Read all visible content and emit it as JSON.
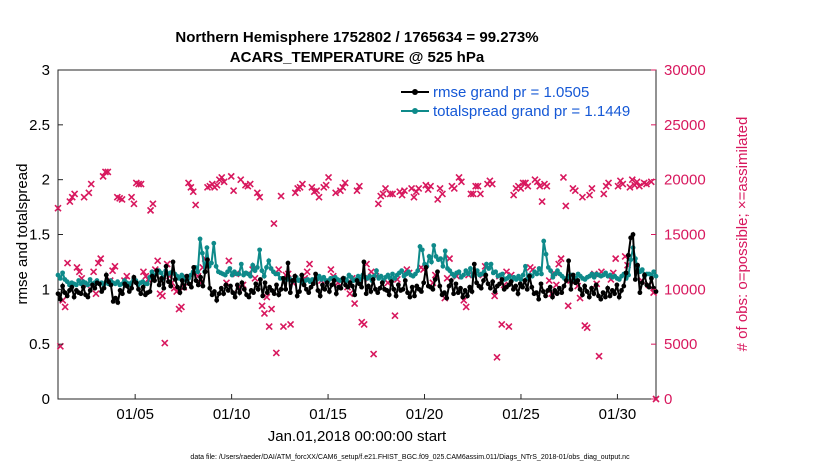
{
  "chart_data": {
    "type": "line",
    "title": "Northern Hemisphere 1752802 / 1765634 = 99.273%",
    "subtitle": "ACARS_TEMPERATURE @ 525 hPa",
    "xlabel": "Jan.01,2018 00:00:00 start",
    "ylabel": "rmse and totalspread",
    "y2label": "# of obs: o=possible; ×=assimilated",
    "footnote": "data file: /Users/raeder/DAI/ATM_forcXX/CAM6_setup/f.e21.FHIST_BGC.f09_025.CAM6assim.011/Diags_NTrS_2018-01/obs_diag_output.nc",
    "xlim": [
      1,
      32
    ],
    "ylim": [
      0,
      3
    ],
    "y2lim": [
      0,
      30000
    ],
    "xticks": [
      5,
      10,
      15,
      20,
      25,
      30
    ],
    "xtick_labels": [
      "01/05",
      "01/10",
      "01/15",
      "01/20",
      "01/25",
      "01/30"
    ],
    "yticks": [
      "0",
      "0.5",
      "1",
      "1.5",
      "2",
      "2.5",
      "3"
    ],
    "y2ticks": [
      "0",
      "5000",
      "10000",
      "15000",
      "20000",
      "25000",
      "30000"
    ],
    "colors": {
      "rmse": "#000000",
      "spread": "#0e8a8a",
      "obs": "#d8185e",
      "legend_text": "#1558d6"
    },
    "legend_position": "top-right",
    "series": [
      {
        "name": "rmse grand pr = 1.0505",
        "marker": "circle",
        "values": [
          0.96,
          0.91,
          1.03,
          0.97,
          0.94,
          0.99,
          1.02,
          0.93,
          0.99,
          0.97,
          0.96,
          1.02,
          0.95,
          0.93,
          0.99,
          1.04,
          1.01,
          1.06,
          1.05,
          0.98,
          1.01,
          1.13,
          1.07,
          1.04,
          0.89,
          0.92,
          0.88,
          0.99,
          0.96,
          1.05,
          1.03,
          0.98,
          1.01,
          1.11,
          1.06,
          1.0,
          0.96,
          1.02,
          0.95,
          0.97,
          0.98,
          1.12,
          1.08,
          1.17,
          1.04,
          1.1,
          1.01,
          1.21,
          1.07,
          1.03,
          1.25,
          1.09,
          1.02,
          0.97,
          1.08,
          1.01,
          1.12,
          1.05,
          1.02,
          1.2,
          1.08,
          1.04,
          1.11,
          1.03,
          1.16,
          1.27,
          1.01,
          0.95,
          0.98,
          0.9,
          0.96,
          1.01,
          0.96,
          1.04,
          0.99,
          1.03,
          0.97,
          0.93,
          1.04,
          0.97,
          1.06,
          1.0,
          0.95,
          0.93,
          0.99,
          0.97,
          1.05,
          1.0,
          1.09,
          0.94,
          1.06,
          0.97,
          1.02,
          0.99,
          0.96,
          1.04,
          0.95,
          1.0,
          1.1,
          1.0,
          1.24,
          0.97,
          1.08,
          1.12,
          0.94,
          0.98,
          1.13,
          1.04,
          1.0,
          0.97,
          1.02,
          1.05,
          1.14,
          0.99,
          0.94,
          1.04,
          1.0,
          1.06,
          0.98,
          1.04,
          1.08,
          0.96,
          1.02,
          1.01,
          1.1,
          1.04,
          1.02,
          1.06,
          1.03,
          0.95,
          1.08,
          1.05,
          1.02,
          1.25,
          0.96,
          1.03,
          0.98,
          1.09,
          1.0,
          0.97,
          1.01,
          1.06,
          1.0,
          0.99,
          0.95,
          1.07,
          1.0,
          0.94,
          1.04,
          0.99,
          1.0,
          1.08,
          0.97,
          0.93,
          1.02,
          0.94,
          1.03,
          1.0,
          0.98,
          1.06,
          1.2,
          1.03,
          1.02,
          1.0,
          1.09,
          1.16,
          1.03,
          0.95,
          0.97,
          0.92,
          1.03,
          1.08,
          0.96,
          1.05,
          0.97,
          1.01,
          0.93,
          0.99,
          0.94,
          1.02,
          0.98,
          1.23,
          1.06,
          1.03,
          1.01,
          1.08,
          1.13,
          1.05,
          1.01,
          1.07,
          0.98,
          1.03,
          1.05,
          1.09,
          1.0,
          1.02,
          1.04,
          1.07,
          1.0,
          1.03,
          0.96,
          1.05,
          1.02,
          1.08,
          1.0,
          1.12,
          1.02,
          0.96,
          0.97,
          0.91,
          1.05,
          0.98,
          0.94,
          0.99,
          1.02,
          0.93,
          0.99,
          0.96,
          1.01,
          0.97,
          1.03,
          1.08,
          1.26,
          1.0,
          1.13,
          1.06,
          1.08,
          1.0,
          0.95,
          1.03,
          0.98,
          0.93,
          1.01,
          0.96,
          1.04,
          0.94,
          0.91,
          0.97,
          0.93,
          1.01,
          0.94,
          0.99,
          0.96,
          1.04,
          0.93,
          0.99,
          1.03,
          1.15,
          1.31,
          1.47,
          1.5,
          1.09,
          1.22,
          0.97,
          1.06,
          1.13,
          1.04,
          1.02,
          1.1,
          1.01,
          0.98
        ]
      },
      {
        "name": "totalspread grand pr = 1.1449",
        "marker": "circle",
        "values": [
          1.13,
          1.1,
          1.15,
          1.09,
          1.07,
          1.04,
          1.06,
          1.05,
          1.04,
          1.08,
          1.05,
          1.07,
          1.06,
          1.04,
          1.09,
          1.05,
          1.06,
          1.08,
          1.05,
          1.06,
          1.04,
          1.07,
          1.05,
          1.08,
          1.06,
          1.05,
          1.07,
          1.04,
          1.05,
          1.08,
          1.06,
          1.04,
          1.06,
          1.09,
          1.08,
          1.04,
          1.06,
          1.07,
          1.05,
          1.05,
          1.11,
          1.16,
          1.12,
          1.14,
          1.17,
          1.15,
          1.1,
          1.17,
          1.14,
          1.15,
          1.16,
          1.14,
          1.12,
          1.1,
          1.13,
          1.11,
          1.08,
          1.1,
          1.13,
          1.16,
          1.2,
          1.16,
          1.46,
          1.33,
          1.16,
          1.38,
          1.21,
          1.24,
          1.42,
          1.21,
          1.16,
          1.15,
          1.14,
          1.13,
          1.16,
          1.19,
          1.13,
          1.16,
          1.14,
          1.14,
          1.23,
          1.13,
          1.15,
          1.14,
          1.12,
          1.22,
          1.17,
          1.2,
          1.36,
          1.17,
          1.12,
          1.2,
          1.26,
          1.19,
          1.16,
          1.14,
          1.14,
          1.1,
          1.1,
          1.09,
          1.09,
          1.1,
          1.08,
          1.08,
          1.11,
          1.08,
          1.09,
          1.06,
          1.08,
          1.09,
          1.07,
          1.09,
          1.08,
          1.09,
          1.12,
          1.09,
          1.11,
          1.08,
          1.08,
          1.1,
          1.1,
          1.11,
          1.09,
          1.08,
          1.09,
          1.1,
          1.08,
          1.13,
          1.11,
          1.08,
          1.09,
          1.12,
          1.09,
          1.13,
          1.11,
          1.1,
          1.12,
          1.08,
          1.12,
          1.17,
          1.1,
          1.12,
          1.08,
          1.11,
          1.13,
          1.1,
          1.14,
          1.1,
          1.13,
          1.15,
          1.17,
          1.12,
          1.14,
          1.16,
          1.13,
          1.12,
          1.14,
          1.17,
          1.39,
          1.36,
          1.23,
          1.21,
          1.3,
          1.25,
          1.4,
          1.3,
          1.27,
          1.28,
          1.21,
          1.35,
          1.19,
          1.17,
          1.14,
          1.12,
          1.15,
          1.16,
          1.11,
          1.13,
          1.17,
          1.14,
          1.19,
          1.12,
          1.14,
          1.17,
          1.13,
          1.14,
          1.16,
          1.23,
          1.19,
          1.23,
          1.15,
          1.16,
          1.12,
          1.13,
          1.14,
          1.09,
          1.1,
          1.12,
          1.08,
          1.11,
          1.09,
          1.12,
          1.09,
          1.13,
          1.21,
          1.1,
          1.13,
          1.12,
          1.16,
          1.14,
          1.19,
          1.14,
          1.44,
          1.32,
          1.2,
          1.17,
          1.11,
          1.14,
          1.17,
          1.14,
          1.12,
          1.1,
          1.09,
          1.12,
          1.13,
          1.09,
          1.1,
          1.14,
          1.12,
          1.1,
          1.09,
          1.11,
          1.12,
          1.14,
          1.11,
          1.14,
          1.13,
          1.12,
          1.13,
          1.15,
          1.12,
          1.13,
          1.11,
          1.12,
          1.1,
          1.09,
          1.12,
          1.14,
          1.1,
          1.13,
          1.27,
          1.38,
          1.28,
          1.2,
          1.16,
          1.18,
          1.12,
          1.14,
          1.14,
          1.13,
          1.16,
          1.12
        ]
      },
      {
        "name": "obs assimilated",
        "marker": "x",
        "axis": "right",
        "values": [
          17400,
          4800,
          9000,
          8400,
          12400,
          18000,
          18400,
          18700,
          12000,
          11600,
          11000,
          18400,
          10400,
          18800,
          19600,
          11600,
          9600,
          12400,
          12800,
          20300,
          20700,
          20700,
          10800,
          11700,
          12100,
          18400,
          18300,
          18200,
          10800,
          11200,
          10400,
          18400,
          17800,
          19700,
          19600,
          19600,
          11600,
          11200,
          10900,
          17200,
          17800,
          11800,
          12600,
          9600,
          9400,
          5100,
          12300,
          11200,
          10600,
          10100,
          9800,
          8200,
          8400,
          10200,
          11100,
          19700,
          19300,
          18900,
          17700,
          11200,
          10600,
          12000,
          12800,
          19300,
          19400,
          19600,
          19300,
          19500,
          20000,
          20200,
          19800,
          10600,
          12600,
          20300,
          19000,
          11400,
          10100,
          20000,
          10400,
          19500,
          19400,
          19600,
          11800,
          11000,
          18800,
          18400,
          8500,
          7800,
          9300,
          6600,
          8200,
          16000,
          4200,
          11800,
          18500,
          6600,
          11300,
          11400,
          6800,
          10600,
          18800,
          19200,
          19300,
          19600,
          11000,
          11600,
          12300,
          19300,
          18900,
          19000,
          18400,
          10800,
          19300,
          19500,
          20200,
          11800,
          11200,
          18800,
          10600,
          19000,
          19300,
          19700,
          10200,
          9600,
          11000,
          8700,
          19000,
          19400,
          7000,
          6800,
          12300,
          11000,
          11600,
          4100,
          11200,
          17800,
          18500,
          18700,
          19200,
          10600,
          18700,
          18700,
          7600,
          10900,
          18900,
          18600,
          19000,
          11800,
          11500,
          19200,
          18400,
          18900,
          19200,
          12000,
          11800,
          19500,
          19100,
          19400,
          10600,
          11300,
          18200,
          19200,
          18700,
          9200,
          11000,
          12800,
          19400,
          19200,
          11200,
          20200,
          19800,
          9000,
          8400,
          11300,
          18700,
          18700,
          19400,
          19400,
          18700,
          11300,
          12100,
          19600,
          19900,
          19600,
          9400,
          3800,
          11200,
          6800,
          10400,
          11600,
          6600,
          11300,
          18600,
          19200,
          19400,
          19200,
          19700,
          19700,
          19400,
          12000,
          11800,
          20000,
          19800,
          19400,
          18000,
          19600,
          19400,
          10800,
          9600,
          11500,
          10400,
          12300,
          12800,
          20200,
          17600,
          8500,
          10800,
          19200,
          19000,
          10300,
          9200,
          18400,
          6700,
          6500,
          18600,
          19200,
          11400,
          10500,
          3900,
          11600,
          18700,
          19400,
          19700,
          10900,
          11500,
          12800,
          19400,
          19900,
          19600,
          13000,
          12200,
          19300,
          20000,
          19500,
          19800,
          19400,
          10800,
          19700,
          19600,
          10400,
          19800,
          9700,
          0
        ]
      }
    ]
  }
}
